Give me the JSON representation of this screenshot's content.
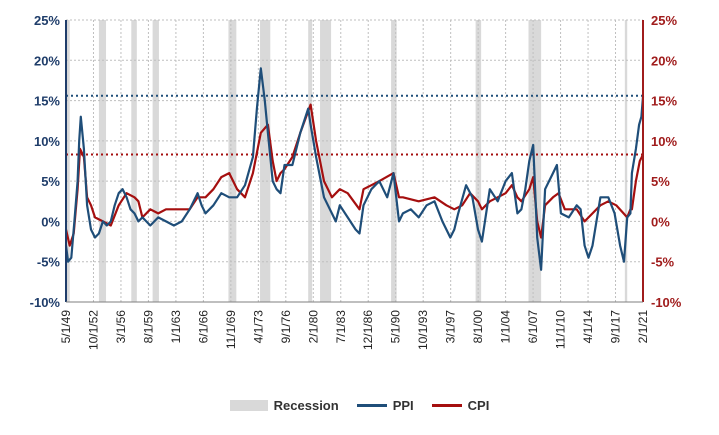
{
  "colors": {
    "ppi": "#1f4e79",
    "cpi": "#a50f0f",
    "recession": "#d9d9d9",
    "grid": "#bfbfbf",
    "left_axis": "#1f3d6a",
    "right_axis": "#a01c1c"
  },
  "chart_data": {
    "type": "line",
    "title": "",
    "xlabel": "",
    "ylabel": "",
    "x_range": [
      1949.33,
      2022.4
    ],
    "ylim": [
      -10,
      25
    ],
    "y_ticks": [
      "25%",
      "20%",
      "15%",
      "10%",
      "5%",
      "0%",
      "-5%",
      "-10%"
    ],
    "y2_ticks": [
      "25%",
      "20%",
      "15%",
      "10%",
      "5%",
      "0%",
      "-5%",
      "-10%"
    ],
    "x_ticks": [
      "5/1/49",
      "10/1/52",
      "3/1/56",
      "8/1/59",
      "1/1/63",
      "6/1/66",
      "11/1/69",
      "4/1/73",
      "9/1/76",
      "2/1/80",
      "7/1/83",
      "12/1/86",
      "5/1/90",
      "10/1/93",
      "3/1/97",
      "8/1/00",
      "1/1/04",
      "6/1/07",
      "11/1/10",
      "4/1/14",
      "9/1/17",
      "2/1/21"
    ],
    "reference_lines": [
      {
        "series": "PPI",
        "value": 15.6
      },
      {
        "series": "CPI",
        "value": 8.3
      }
    ],
    "recessions": [
      [
        1949.33,
        1949.8
      ],
      [
        1953.5,
        1954.4
      ],
      [
        1957.6,
        1958.3
      ],
      [
        1960.3,
        1961.1
      ],
      [
        1969.9,
        1970.9
      ],
      [
        1973.9,
        1975.2
      ],
      [
        1980.0,
        1980.5
      ],
      [
        1981.5,
        1982.9
      ],
      [
        1990.5,
        1991.2
      ],
      [
        2001.2,
        2001.9
      ],
      [
        2007.9,
        2009.5
      ],
      [
        2020.1,
        2020.4
      ]
    ],
    "series": [
      {
        "name": "PPI",
        "x": [
          1949.33,
          1949.6,
          1950.0,
          1950.4,
          1950.8,
          1951.0,
          1951.2,
          1951.6,
          1952.0,
          1952.5,
          1953.0,
          1953.5,
          1954.0,
          1954.5,
          1955.0,
          1955.5,
          1956.0,
          1956.5,
          1957.0,
          1957.5,
          1958.0,
          1958.5,
          1959.0,
          1959.5,
          1960.0,
          1961.0,
          1962.0,
          1963.0,
          1964.0,
          1965.0,
          1966.0,
          1966.5,
          1967.0,
          1968.0,
          1969.0,
          1970.0,
          1971.0,
          1972.0,
          1973.0,
          1973.5,
          1974.0,
          1974.5,
          1974.9,
          1975.5,
          1976.0,
          1976.5,
          1977.0,
          1978.0,
          1979.0,
          1980.0,
          1980.3,
          1981.0,
          1982.0,
          1983.0,
          1983.5,
          1984.0,
          1985.0,
          1986.0,
          1986.5,
          1987.0,
          1988.0,
          1989.0,
          1990.0,
          1990.8,
          1991.5,
          1992.0,
          1993.0,
          1994.0,
          1995.0,
          1996.0,
          1997.0,
          1998.0,
          1998.5,
          1999.0,
          2000.0,
          2000.8,
          2001.5,
          2002.0,
          2003.0,
          2004.0,
          2005.0,
          2005.8,
          2006.5,
          2007.0,
          2007.5,
          2008.0,
          2008.5,
          2009.0,
          2009.5,
          2010.0,
          2011.0,
          2011.5,
          2012.0,
          2013.0,
          2014.0,
          2014.5,
          2015.0,
          2015.5,
          2016.0,
          2017.0,
          2018.0,
          2018.8,
          2019.5,
          2020.0,
          2020.4,
          2020.8,
          2021.0,
          2021.5,
          2021.9,
          2022.2,
          2022.4
        ],
        "values": [
          -3,
          -5,
          -4.5,
          0,
          5,
          10,
          13,
          9,
          2,
          -1,
          -2,
          -1.5,
          0,
          -0.5,
          0,
          2,
          3.5,
          4,
          3,
          1.5,
          1,
          0,
          0.5,
          0,
          -0.5,
          0.5,
          0,
          -0.5,
          0,
          1.5,
          3.5,
          2,
          1,
          2,
          3.5,
          3,
          3,
          4.5,
          8,
          14,
          19,
          15,
          11,
          5,
          4,
          3.5,
          7,
          7,
          11,
          14,
          12,
          8,
          3,
          1,
          0,
          2,
          0.5,
          -1,
          -1.5,
          2,
          4,
          5,
          3,
          6,
          0,
          1,
          1.5,
          0.5,
          2,
          2.5,
          0,
          -2,
          -1,
          1,
          4.5,
          3,
          -1,
          -2.5,
          4,
          2.5,
          5,
          6,
          1,
          1.5,
          4,
          7.5,
          9.5,
          -2,
          -6,
          4,
          6,
          7,
          1,
          0.5,
          2,
          1.5,
          -3,
          -4.5,
          -3,
          3,
          3,
          1,
          -3,
          -5,
          0.5,
          1,
          6,
          9,
          12,
          13,
          15.5
        ]
      },
      {
        "name": "CPI",
        "x": [
          1949.33,
          1949.8,
          1950.3,
          1950.8,
          1951.1,
          1951.6,
          1952.0,
          1952.5,
          1953.0,
          1954.0,
          1955.0,
          1956.0,
          1957.0,
          1958.0,
          1958.5,
          1959.0,
          1960.0,
          1961.0,
          1962.0,
          1963.0,
          1964.0,
          1965.0,
          1966.0,
          1967.0,
          1968.0,
          1969.0,
          1970.0,
          1971.0,
          1972.0,
          1973.0,
          1974.0,
          1974.9,
          1975.5,
          1976.0,
          1976.5,
          1977.0,
          1978.0,
          1979.0,
          1980.3,
          1981.0,
          1982.0,
          1983.0,
          1984.0,
          1985.0,
          1986.5,
          1987.0,
          1988.0,
          1989.0,
          1990.8,
          1991.5,
          1992.0,
          1994.0,
          1996.0,
          1997.5,
          1998.5,
          1999.5,
          2000.5,
          2001.5,
          2002.0,
          2003.0,
          2004.0,
          2005.0,
          2005.8,
          2006.5,
          2007.0,
          2008.0,
          2008.5,
          2009.0,
          2009.5,
          2010.0,
          2011.0,
          2011.7,
          2012.5,
          2013.0,
          2014.0,
          2015.0,
          2016.0,
          2017.0,
          2018.0,
          2019.0,
          2020.4,
          2020.8,
          2021.0,
          2021.5,
          2022.0,
          2022.4
        ],
        "values": [
          -1,
          -3,
          -1.5,
          4,
          9,
          8,
          3,
          2,
          0.5,
          0,
          -0.5,
          2,
          3.5,
          3,
          2.5,
          0.5,
          1.5,
          1,
          1.5,
          1.5,
          1.5,
          1.5,
          3,
          3,
          4,
          5.5,
          6,
          4,
          3,
          6,
          11,
          12,
          7.5,
          5,
          6,
          6.5,
          8,
          11,
          14.5,
          10,
          5,
          3,
          4,
          3.5,
          1.5,
          4,
          4.5,
          5,
          6,
          3,
          3,
          2.5,
          3,
          2,
          1.5,
          2,
          3.5,
          2.5,
          1.5,
          2.5,
          3,
          3.5,
          4.5,
          3,
          2.5,
          4,
          5.5,
          0,
          -2,
          2,
          3,
          3.5,
          1.5,
          1.5,
          1.5,
          0,
          1,
          2,
          2.5,
          2,
          0.5,
          1.5,
          1.5,
          5,
          7.5,
          8.3
        ]
      }
    ]
  },
  "legend": {
    "recession": "Recession",
    "ppi": "PPI",
    "cpi": "CPI"
  }
}
